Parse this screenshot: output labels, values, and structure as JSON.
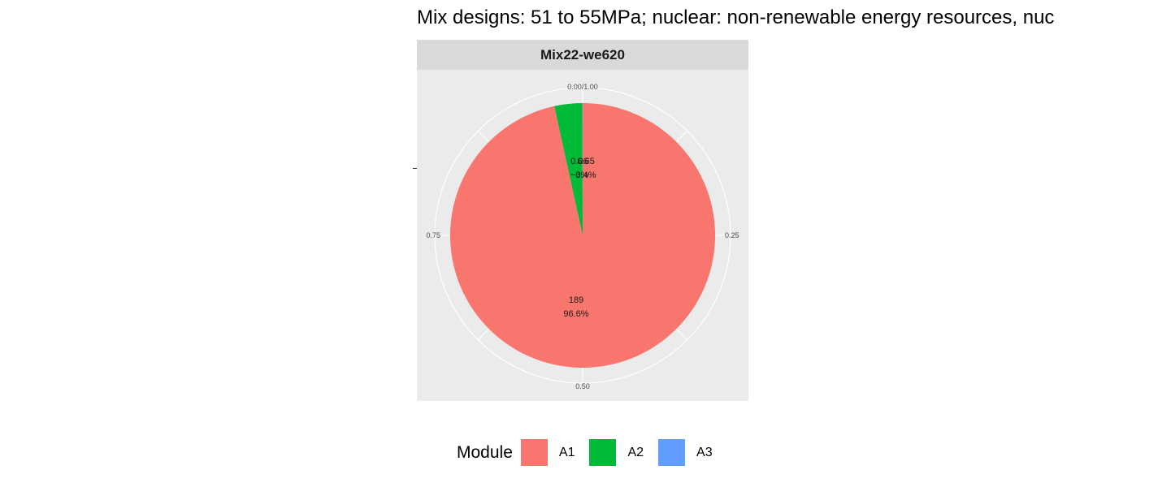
{
  "chart_data": {
    "type": "pie",
    "title": "Mix designs: 51 to 55MPa; nuclear: non-renewable energy resources, nuc",
    "facet": "Mix22-we620",
    "theta_ticks": [
      "0.00/1.00",
      "0.25",
      "0.50",
      "0.75"
    ],
    "legend_title": "Module",
    "slices": [
      {
        "name": "A1",
        "value": 189,
        "fraction": 0.966,
        "value_label": "189",
        "percent_label": "96.6%",
        "color": "#F8766D"
      },
      {
        "name": "A2",
        "value": 6.65,
        "fraction": 0.034,
        "value_label": "6.65",
        "percent_label": "3.4%",
        "color": "#00BA38"
      },
      {
        "name": "A3",
        "value": 0.06,
        "fraction": 0.0003,
        "value_label": "0.06",
        "percent_label": "~0%",
        "color": "#619CFF"
      }
    ]
  }
}
